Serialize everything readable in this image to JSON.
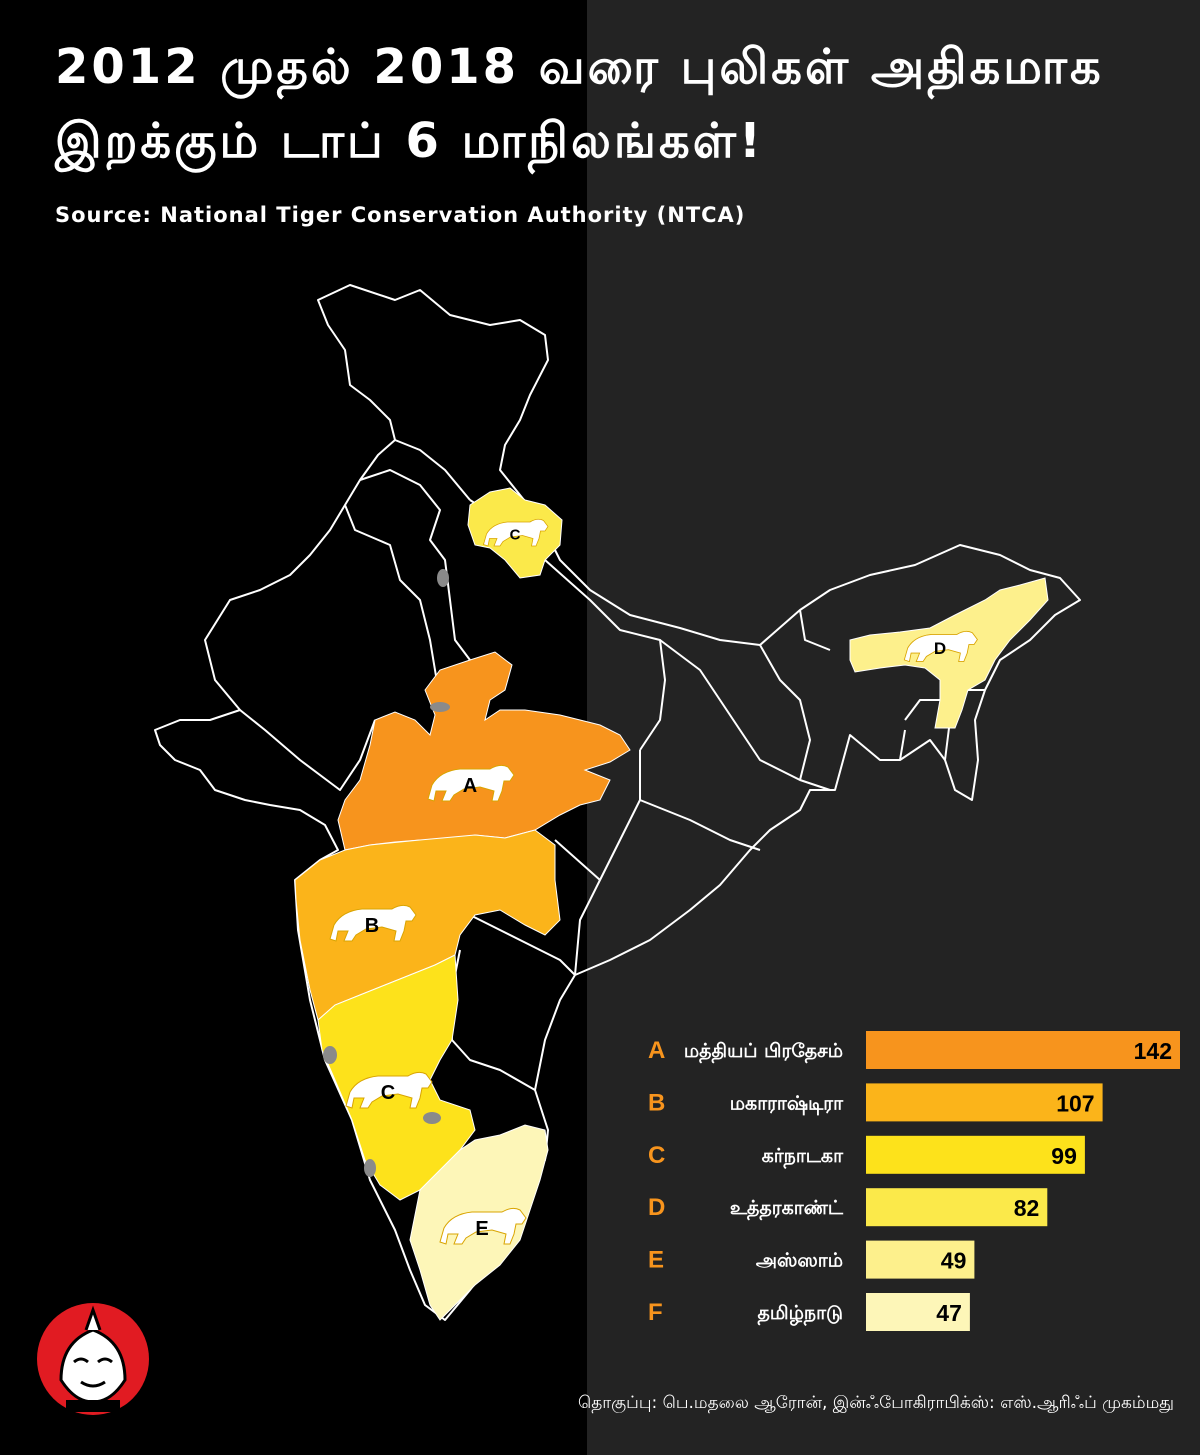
{
  "title_line1": "2012 முதல் 2018 வரை புலிகள் அதிகமாக",
  "title_line2": "இறக்கும் டாப் 6 மாநிலங்கள்!",
  "source": "Source: National Tiger Conservation Authority (NTCA)",
  "credit": "தொகுப்பு: பெ.மதலை ஆரோன், இன்ஃபோகிராபிக்ஸ்: எஸ்.ஆரிஃப் முகம்மது",
  "map_labels": [
    "A",
    "B",
    "C",
    "C",
    "D",
    "E"
  ],
  "colors": {
    "background_left": "#000000",
    "background_right": "#232323",
    "outline": "#ffffff",
    "letter": "#f7941d"
  },
  "chart_data": {
    "type": "bar",
    "orientation": "horizontal",
    "categories": [
      "A",
      "B",
      "C",
      "D",
      "E",
      "F"
    ],
    "labels": [
      "மத்தியப் பிரதேசம்",
      "மகாராஷ்டிரா",
      "கர்நாடகா",
      "உத்தரகாண்ட்",
      "அஸ்ஸாம்",
      "தமிழ்நாடு"
    ],
    "values": [
      142,
      107,
      99,
      82,
      49,
      47
    ],
    "colors": [
      "#f7941d",
      "#fbb41a",
      "#fde21b",
      "#fbe94a",
      "#fdf08c",
      "#fdf6b8"
    ],
    "xlim": [
      0,
      142
    ],
    "title": "",
    "xlabel": "",
    "ylabel": "",
    "grid": false,
    "legend": "none"
  }
}
